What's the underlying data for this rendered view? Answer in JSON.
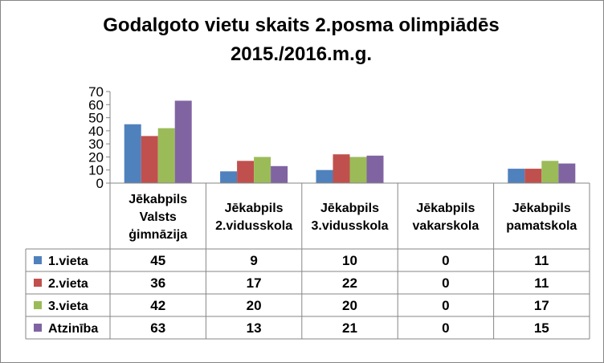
{
  "chart_data": {
    "type": "bar",
    "title_line1": "Godalgoto vietu skaits 2.posma olimpiādēs",
    "title_line2": "2015./2016.m.g.",
    "categories": [
      [
        "Jēkabpils",
        "Valsts",
        "ģimnāzija"
      ],
      [
        "Jēkabpils",
        "2.vidusskola"
      ],
      [
        "Jēkabpils",
        "3.vidusskola"
      ],
      [
        "Jēkabpils",
        "vakarskola"
      ],
      [
        "Jēkabpils",
        "pamatskola"
      ]
    ],
    "series": [
      {
        "name": "1.vieta",
        "color": "#4F81BD",
        "values": [
          45,
          9,
          10,
          0,
          11
        ]
      },
      {
        "name": "2.vieta",
        "color": "#C0504D",
        "values": [
          36,
          17,
          22,
          0,
          11
        ]
      },
      {
        "name": "3.vieta",
        "color": "#9BBB59",
        "values": [
          42,
          20,
          20,
          0,
          17
        ]
      },
      {
        "name": "Atzinība",
        "color": "#8064A2",
        "values": [
          63,
          13,
          21,
          0,
          15
        ]
      }
    ],
    "ylim": [
      0,
      70
    ],
    "yticks": [
      0,
      10,
      20,
      30,
      40,
      50,
      60,
      70
    ],
    "legend": "data-table",
    "grid": false
  }
}
